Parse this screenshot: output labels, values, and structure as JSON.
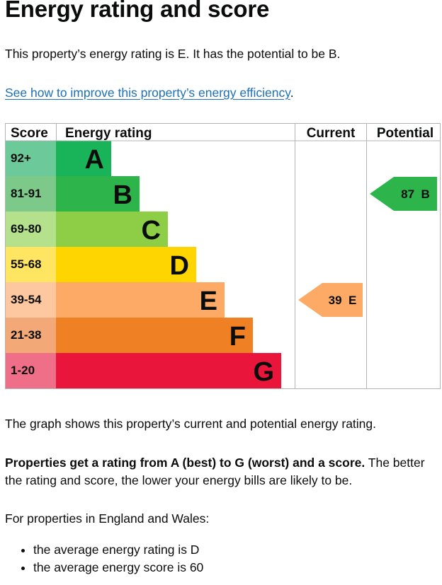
{
  "page_title": "Energy rating and score",
  "intro": "This property’s energy rating is E. It has the potential to be B.",
  "improve_link": "See how to improve this property’s energy efficiency",
  "improve_link_suffix": ".",
  "chart_data": {
    "type": "table",
    "headers": {
      "score": "Score",
      "rating": "Energy rating",
      "current": "Current",
      "potential": "Potential"
    },
    "bands": [
      {
        "score_range": "92+",
        "letter": "A",
        "band_color": "#19b459",
        "score_color": "#6bc99a"
      },
      {
        "score_range": "81-91",
        "letter": "B",
        "band_color": "#2db44b",
        "score_color": "#7cc98a"
      },
      {
        "score_range": "69-80",
        "letter": "C",
        "band_color": "#8dce46",
        "score_color": "#b5e08c"
      },
      {
        "score_range": "55-68",
        "letter": "D",
        "band_color": "#ffd500",
        "score_color": "#ffe561"
      },
      {
        "score_range": "39-54",
        "letter": "E",
        "band_color": "#fcaa65",
        "score_color": "#fdc8a0"
      },
      {
        "score_range": "21-38",
        "letter": "F",
        "band_color": "#ef8023",
        "score_color": "#f3a877"
      },
      {
        "score_range": "1-20",
        "letter": "G",
        "band_color": "#e9153b",
        "score_color": "#ef6f89"
      }
    ],
    "current": {
      "score": 39,
      "letter": "E",
      "label": "39  E",
      "color": "#fcaa65"
    },
    "potential": {
      "score": 87,
      "letter": "B",
      "label": "87  B",
      "color": "#2db44b"
    }
  },
  "graph_description": "The graph shows this property’s current and potential energy rating.",
  "ratings_bold": "Properties get a rating from A (best) to G (worst) and a score.",
  "ratings_rest": " The better the rating and score, the lower your energy bills are likely to be.",
  "england_intro": "For properties in England and Wales:",
  "averages": [
    "the average energy rating is D",
    "the average energy score is 60"
  ]
}
